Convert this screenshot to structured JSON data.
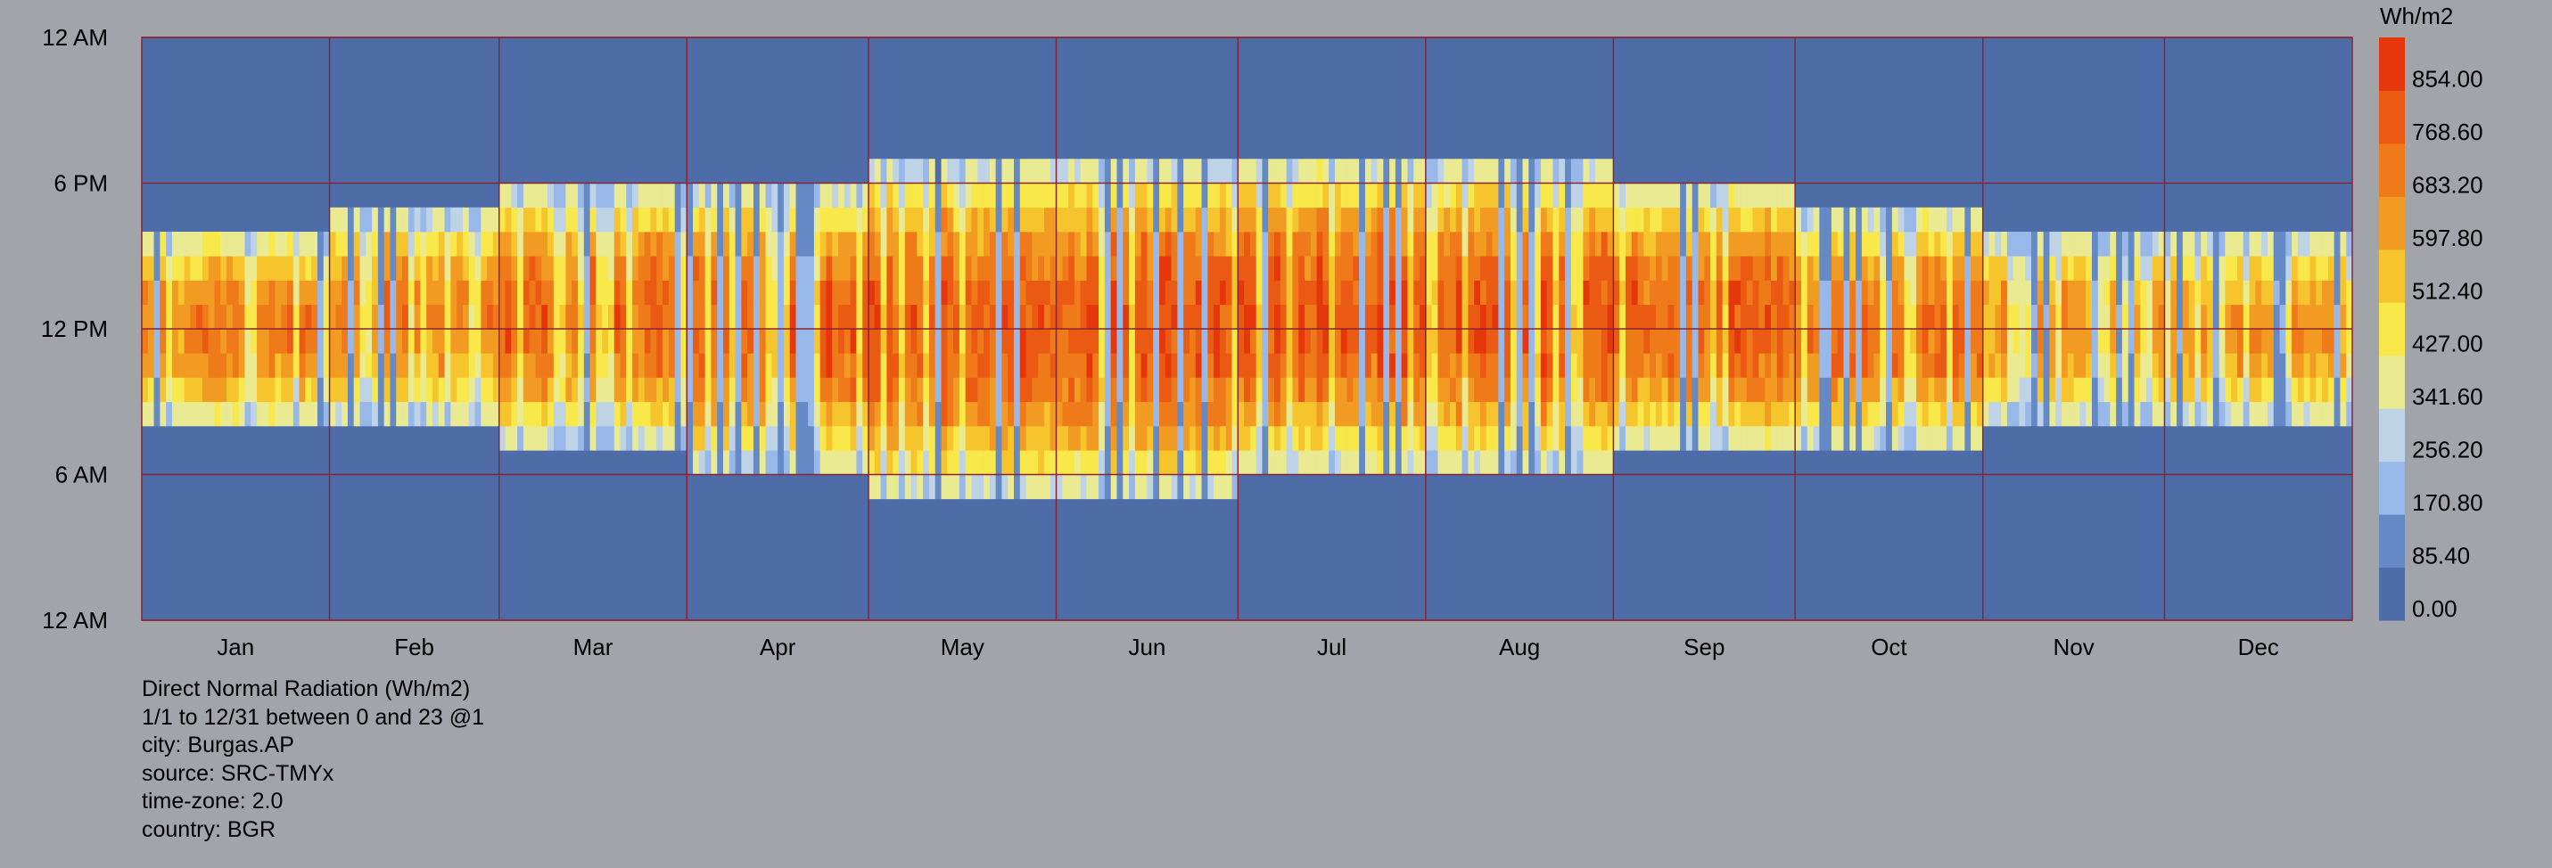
{
  "chart_data": {
    "type": "heatmap",
    "x_tick_labels": [
      "Jan",
      "Feb",
      "Mar",
      "Apr",
      "May",
      "Jun",
      "Jul",
      "Aug",
      "Sep",
      "Oct",
      "Nov",
      "Dec"
    ],
    "y_tick_labels": [
      "12 AM",
      "6 PM",
      "12 PM",
      "6 AM",
      "12 AM"
    ],
    "y_axis_hours": [
      24,
      18,
      12,
      6,
      0
    ],
    "colorbar": {
      "unit_label": "Wh/m2",
      "tick_labels": [
        "854.00",
        "768.60",
        "683.20",
        "597.80",
        "512.40",
        "427.00",
        "341.60",
        "256.20",
        "170.80",
        "85.40",
        "0.00"
      ],
      "range": [
        0,
        939.4
      ],
      "colors": [
        "#4d6ca8",
        "#6589c4",
        "#97b8e8",
        "#bfd3e6",
        "#e9ea91",
        "#f9e84a",
        "#f6c52e",
        "#f29b22",
        "#ee7a1a",
        "#eb5a12",
        "#e6360c"
      ]
    },
    "x_range_days": [
      1,
      365
    ],
    "hours_range": [
      0,
      24
    ],
    "grid": true,
    "daylight_envelope": [
      {
        "month": "Jan",
        "sunrise_hour": 8,
        "sunset_hour": 16
      },
      {
        "month": "Feb",
        "sunrise_hour": 8,
        "sunset_hour": 17
      },
      {
        "month": "Mar",
        "sunrise_hour": 7,
        "sunset_hour": 18
      },
      {
        "month": "Apr",
        "sunrise_hour": 6,
        "sunset_hour": 18
      },
      {
        "month": "May",
        "sunrise_hour": 5,
        "sunset_hour": 19
      },
      {
        "month": "Jun",
        "sunrise_hour": 5,
        "sunset_hour": 19
      },
      {
        "month": "Jul",
        "sunrise_hour": 6,
        "sunset_hour": 19
      },
      {
        "month": "Aug",
        "sunrise_hour": 6,
        "sunset_hour": 19
      },
      {
        "month": "Sep",
        "sunrise_hour": 7,
        "sunset_hour": 18
      },
      {
        "month": "Oct",
        "sunrise_hour": 7,
        "sunset_hour": 17
      },
      {
        "month": "Nov",
        "sunrise_hour": 8,
        "sunset_hour": 16
      },
      {
        "month": "Dec",
        "sunrise_hour": 8,
        "sunset_hour": 16
      }
    ],
    "monthly_peak_noon_values": [
      {
        "month": "Jan",
        "value": 780
      },
      {
        "month": "Feb",
        "value": 760
      },
      {
        "month": "Mar",
        "value": 820
      },
      {
        "month": "Apr",
        "value": 860
      },
      {
        "month": "May",
        "value": 860
      },
      {
        "month": "Jun",
        "value": 880
      },
      {
        "month": "Jul",
        "value": 900
      },
      {
        "month": "Aug",
        "value": 880
      },
      {
        "month": "Sep",
        "value": 860
      },
      {
        "month": "Oct",
        "value": 820
      },
      {
        "month": "Nov",
        "value": 720
      },
      {
        "month": "Dec",
        "value": 720
      }
    ]
  },
  "info": {
    "title": "Direct Normal Radiation (Wh/m2)",
    "period": "1/1 to 12/31 between 0 and 23 @1",
    "city": "city: Burgas.AP",
    "source": "source: SRC-TMYx",
    "time_zone": "time-zone: 2.0",
    "country": "country: BGR"
  }
}
